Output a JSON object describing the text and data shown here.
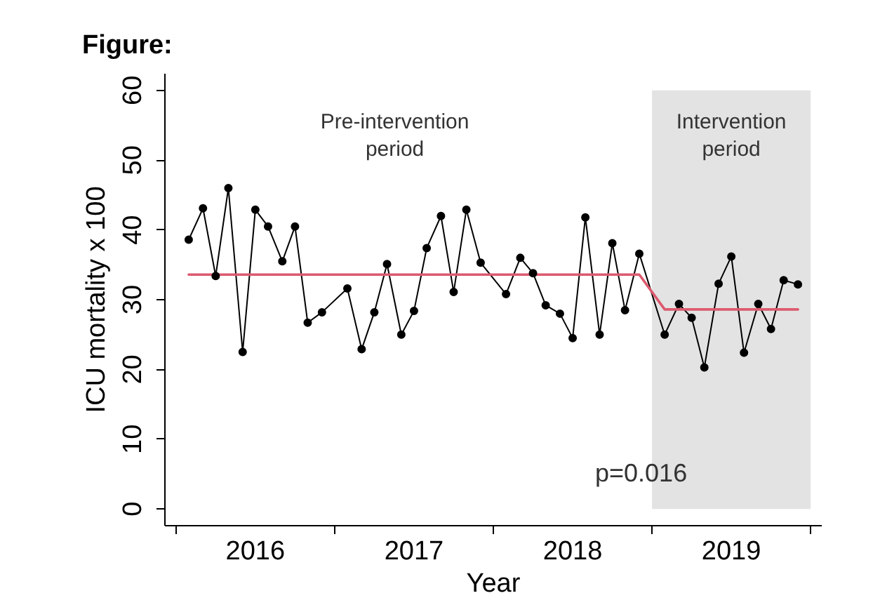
{
  "chart_data": {
    "type": "line",
    "title": "Figure:",
    "xlabel": "Year",
    "ylabel": "ICU mortality x 100",
    "x": [
      2016.08,
      2016.17,
      2016.25,
      2016.33,
      2016.42,
      2016.5,
      2016.58,
      2016.67,
      2016.75,
      2016.83,
      2016.92,
      2017.08,
      2017.17,
      2017.25,
      2017.33,
      2017.42,
      2017.5,
      2017.58,
      2017.67,
      2017.75,
      2017.83,
      2017.92,
      2018.08,
      2018.17,
      2018.25,
      2018.33,
      2018.42,
      2018.5,
      2018.58,
      2018.67,
      2018.75,
      2018.83,
      2018.92,
      2019.08,
      2019.17,
      2019.25,
      2019.33,
      2019.42,
      2019.5,
      2019.58,
      2019.67,
      2019.75,
      2019.83,
      2019.92
    ],
    "xlim": [
      2015.93,
      2020.07
    ],
    "xticks": [
      {
        "value": 2016,
        "label": null
      },
      {
        "value": 2016.5,
        "label": "2016"
      },
      {
        "value": 2017,
        "label": null
      },
      {
        "value": 2017.5,
        "label": "2017"
      },
      {
        "value": 2018,
        "label": null
      },
      {
        "value": 2018.5,
        "label": "2018"
      },
      {
        "value": 2019,
        "label": null
      },
      {
        "value": 2019.5,
        "label": "2019"
      },
      {
        "value": 2020,
        "label": null
      }
    ],
    "ylim": [
      -2.4,
      62.4
    ],
    "yticks": [
      0,
      10,
      20,
      30,
      40,
      50,
      60
    ],
    "marker": "circle",
    "series": [
      {
        "color": "#000000",
        "values": [
          38.6,
          43.1,
          33.4,
          46.0,
          22.5,
          42.9,
          40.5,
          35.5,
          40.5,
          26.7,
          28.2,
          31.6,
          22.9,
          28.2,
          35.1,
          25.0,
          28.4,
          37.4,
          42.0,
          31.1,
          42.9,
          35.3,
          30.8,
          36.0,
          33.8,
          29.2,
          28.0,
          24.5,
          41.8,
          25.0,
          38.1,
          28.5,
          36.6,
          25.0,
          29.4,
          27.4,
          20.3,
          32.3,
          36.2,
          22.4,
          29.4,
          25.8,
          32.8,
          32.2
        ]
      },
      {
        "type": "line",
        "color": "#dc5a6e",
        "marker": "none",
        "x": [
          2016.08,
          2018.92,
          2019.08,
          2019.92
        ],
        "values": [
          33.6,
          33.6,
          28.6,
          28.6
        ]
      }
    ],
    "bands": [
      {
        "axis": "x",
        "from": 2019,
        "to": 2020,
        "label": "Intervention\nperiod",
        "color": "#e3e3e3"
      }
    ],
    "annotations": [
      "Pre-intervention\nperiod",
      "p=0.016"
    ]
  }
}
